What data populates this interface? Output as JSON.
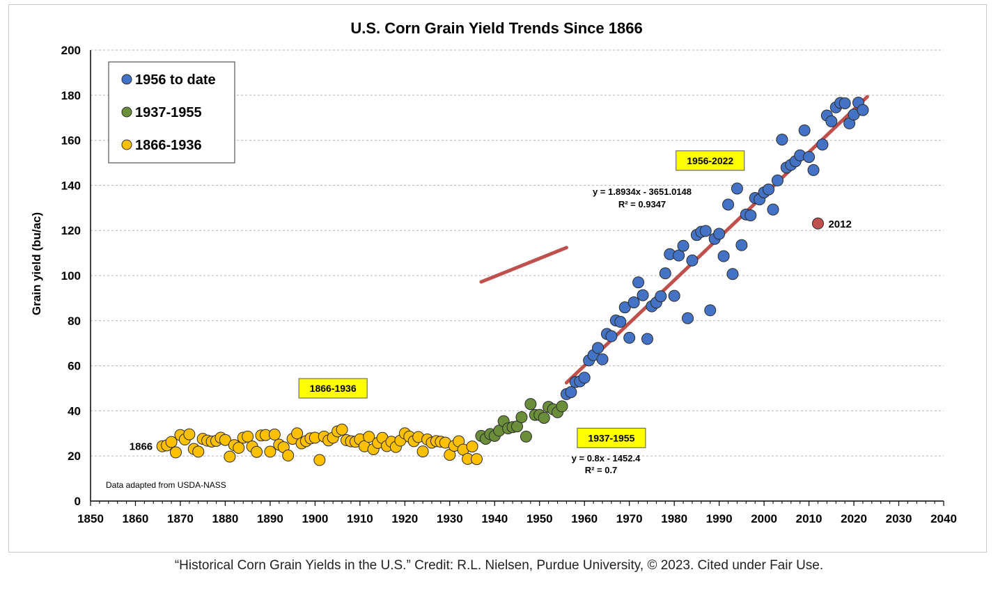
{
  "chart_data": {
    "type": "scatter",
    "title": "U.S. Corn Grain Yield Trends Since 1866",
    "xlabel": "",
    "ylabel": "Grain yield (bu/ac)",
    "xlim": [
      1850,
      2040
    ],
    "ylim": [
      0,
      200
    ],
    "xticks": [
      1850,
      1860,
      1870,
      1880,
      1890,
      1900,
      1910,
      1920,
      1930,
      1940,
      1950,
      1960,
      1970,
      1980,
      1990,
      2000,
      2010,
      2020,
      2030,
      2040
    ],
    "yticks": [
      0,
      20,
      40,
      60,
      80,
      100,
      120,
      140,
      160,
      180,
      200
    ],
    "grid": "horizontal dashed",
    "legend_position": "top-left",
    "legend": [
      "1956 to date",
      "1937-1955",
      "1866-1936"
    ],
    "colors": {
      "era3": "#4472c4",
      "era2": "#6a8e3a",
      "era1": "#ffc000",
      "highlight": "#c0504d",
      "trend": "#c0504d",
      "label_bg": "#ffff00"
    },
    "series": [
      {
        "name": "1866-1936",
        "color": "#ffc000",
        "x": [
          1866,
          1867,
          1868,
          1869,
          1870,
          1871,
          1872,
          1873,
          1874,
          1875,
          1876,
          1877,
          1878,
          1879,
          1880,
          1881,
          1882,
          1883,
          1884,
          1885,
          1886,
          1887,
          1888,
          1889,
          1890,
          1891,
          1892,
          1893,
          1894,
          1895,
          1896,
          1897,
          1898,
          1899,
          1900,
          1901,
          1902,
          1903,
          1904,
          1905,
          1906,
          1907,
          1908,
          1909,
          1910,
          1911,
          1912,
          1913,
          1914,
          1915,
          1916,
          1917,
          1918,
          1919,
          1920,
          1921,
          1922,
          1923,
          1924,
          1925,
          1926,
          1927,
          1928,
          1929,
          1930,
          1931,
          1932,
          1933,
          1934,
          1935,
          1936
        ],
        "y": [
          24.3,
          24.7,
          26.2,
          21.6,
          29.3,
          27.3,
          29.6,
          23.1,
          21.9,
          27.6,
          26.8,
          26.4,
          26.7,
          28.1,
          27.1,
          19.7,
          24.8,
          23.6,
          28.1,
          28.6,
          24.2,
          21.8,
          29.1,
          29.3,
          21.9,
          29.5,
          25.0,
          23.9,
          20.2,
          27.6,
          30.0,
          25.6,
          26.6,
          27.8,
          28.1,
          18.2,
          28.6,
          26.9,
          28.1,
          30.9,
          31.7,
          27.0,
          26.5,
          26.3,
          27.4,
          24.3,
          28.5,
          23.0,
          25.8,
          28.0,
          24.4,
          26.3,
          24.0,
          26.8,
          30.0,
          28.6,
          26.6,
          28.4,
          22.0,
          27.3,
          25.9,
          26.6,
          26.3,
          25.9,
          20.5,
          24.5,
          26.5,
          22.8,
          18.7,
          24.2,
          18.6
        ]
      },
      {
        "name": "1937-1955",
        "color": "#6a8e3a",
        "x": [
          1937,
          1938,
          1939,
          1940,
          1941,
          1942,
          1943,
          1944,
          1945,
          1946,
          1947,
          1948,
          1949,
          1950,
          1951,
          1952,
          1953,
          1954,
          1955
        ],
        "y": [
          28.9,
          27.6,
          29.7,
          28.9,
          31.2,
          35.4,
          32.2,
          32.8,
          33.1,
          37.2,
          28.6,
          43.0,
          38.2,
          38.2,
          36.9,
          41.8,
          40.7,
          39.4,
          42.0
        ]
      },
      {
        "name": "1956 to date",
        "color": "#4472c4",
        "x": [
          1956,
          1957,
          1958,
          1959,
          1960,
          1961,
          1962,
          1963,
          1964,
          1965,
          1966,
          1967,
          1968,
          1969,
          1970,
          1971,
          1972,
          1973,
          1974,
          1975,
          1976,
          1977,
          1978,
          1979,
          1980,
          1981,
          1982,
          1983,
          1984,
          1985,
          1986,
          1987,
          1988,
          1989,
          1990,
          1991,
          1992,
          1993,
          1994,
          1995,
          1996,
          1997,
          1998,
          1999,
          2000,
          2001,
          2002,
          2003,
          2004,
          2005,
          2006,
          2007,
          2008,
          2009,
          2010,
          2011,
          2013,
          2014,
          2015,
          2016,
          2017,
          2018,
          2019,
          2020,
          2021,
          2022
        ],
        "y": [
          47.4,
          48.3,
          52.8,
          53.1,
          54.7,
          62.4,
          64.7,
          67.9,
          62.9,
          74.1,
          73.1,
          80.1,
          79.5,
          85.9,
          72.4,
          88.1,
          97.0,
          91.3,
          71.9,
          86.4,
          88.0,
          90.8,
          101.0,
          109.5,
          91.0,
          108.9,
          113.2,
          81.1,
          106.7,
          118.0,
          119.4,
          119.8,
          84.6,
          116.3,
          118.5,
          108.6,
          131.5,
          100.7,
          138.6,
          113.5,
          127.1,
          126.7,
          134.4,
          133.8,
          136.9,
          138.2,
          129.3,
          142.2,
          160.3,
          147.9,
          149.1,
          150.7,
          153.3,
          164.4,
          152.6,
          146.8,
          158.1,
          171.0,
          168.4,
          174.6,
          176.6,
          176.4,
          167.5,
          171.4,
          176.7,
          173.4
        ]
      },
      {
        "name": "2012",
        "color": "#c0504d",
        "x": [
          2012
        ],
        "y": [
          123.1
        ]
      }
    ],
    "trendlines": [
      {
        "name": "1937-1955 trend",
        "equation": "y = 0.8x - 1452.4",
        "r2": "R² = 0.7",
        "slope": 0.8,
        "intercept": -1452.4,
        "x_range": [
          1937,
          1956
        ]
      },
      {
        "name": "1956-2022 trend",
        "equation": "y = 1.8934x - 3651.0148",
        "r2": "R² = 0.9347",
        "slope": 1.8934,
        "intercept": -3651.0148,
        "x_range": [
          1956,
          2023
        ]
      }
    ],
    "annotations": [
      {
        "label": "1866",
        "x": 1866,
        "y": 24.3
      },
      {
        "label": "2012",
        "x": 2012,
        "y": 123.1
      },
      {
        "label": "1866-1936",
        "x": 1904,
        "y": 50,
        "boxed": true
      },
      {
        "label": "1937-1955",
        "x": 1966,
        "y": 28,
        "boxed": true
      },
      {
        "label": "1956-2022",
        "x": 1988,
        "y": 151,
        "boxed": true
      }
    ],
    "source_note": "Data adapted from USDA-NASS"
  },
  "credit": "“Historical Corn Grain Yields in the U.S.” Credit: R.L. Nielsen, Purdue University, © 2023. Cited under Fair Use."
}
